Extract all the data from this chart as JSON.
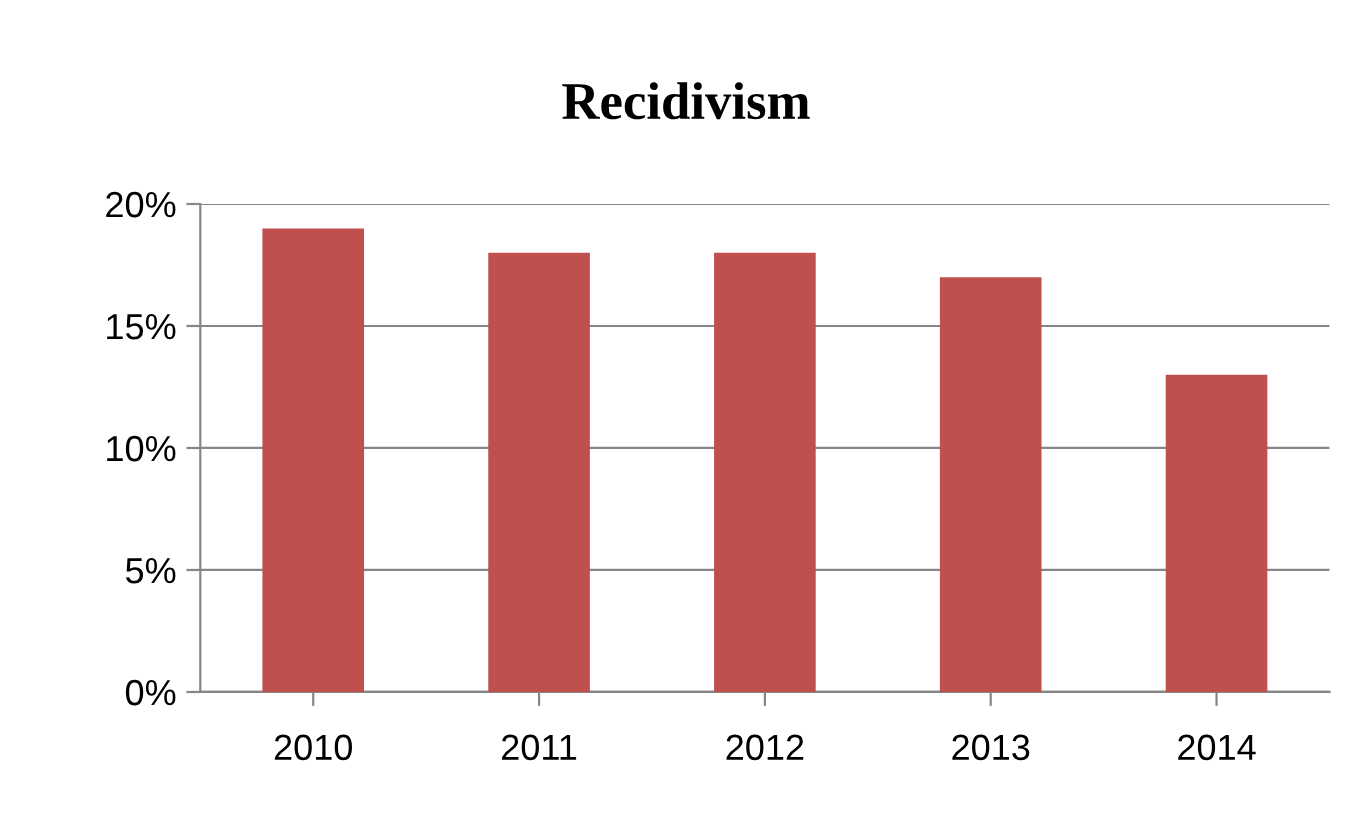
{
  "chart_data": {
    "type": "bar",
    "title": "Recidivism",
    "categories": [
      "2010",
      "2011",
      "2012",
      "2013",
      "2014"
    ],
    "values": [
      19,
      18,
      18,
      17,
      13
    ],
    "color": "#c0504d",
    "ylim": [
      0,
      20
    ],
    "yticks": [
      {
        "value": 0,
        "label": "0%"
      },
      {
        "value": 5,
        "label": "5%"
      },
      {
        "value": 10,
        "label": "10%"
      },
      {
        "value": 15,
        "label": "15%"
      },
      {
        "value": 20,
        "label": "20%"
      }
    ],
    "grid": "y",
    "legend": false
  }
}
